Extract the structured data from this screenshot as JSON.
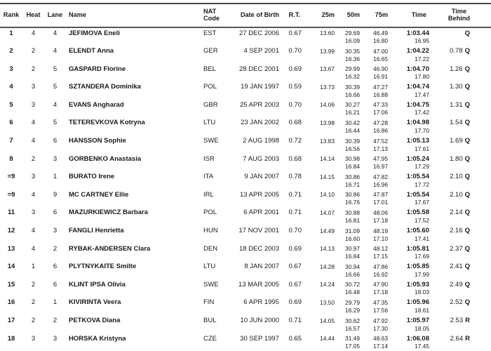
{
  "page": {
    "background": "#ffffff",
    "text_color": "#1a1a1a",
    "rule_color": "#4a4a4a"
  },
  "header": {
    "rank": "Rank",
    "heat": "Heat",
    "lane": "Lane",
    "name": "Name",
    "nat_line1": "NAT",
    "nat_line2": "Code",
    "dob": "Date of Birth",
    "rt": "R.T.",
    "m25": "25m",
    "m50": "50m",
    "m75": "75m",
    "time": "Time",
    "behind_line1": "Time",
    "behind_line2": "Behind"
  },
  "rows": [
    {
      "rank": "1",
      "heat": "4",
      "lane": "4",
      "name": "JEFIMOVA Eneli",
      "nat": "EST",
      "dob": "27 DEC 2006",
      "rt": "0.67",
      "m25": "13.60",
      "m50": "29.69",
      "m75": "46.49",
      "time": "1:03.44",
      "behind": "",
      "qual": "Q",
      "s50": "16.09",
      "s75": "16.80",
      "stime": "16.95"
    },
    {
      "rank": "2",
      "heat": "2",
      "lane": "4",
      "name": "ELENDT Anna",
      "nat": "GER",
      "dob": "4 SEP 2001",
      "rt": "0.70",
      "m25": "13.99",
      "m50": "30.35",
      "m75": "47.00",
      "time": "1:04.22",
      "behind": "0.78",
      "qual": "Q",
      "s50": "16.36",
      "s75": "16.65",
      "stime": "17.22"
    },
    {
      "rank": "3",
      "heat": "2",
      "lane": "5",
      "name": "GASPARD Florine",
      "nat": "BEL",
      "dob": "28 DEC 2001",
      "rt": "0.69",
      "m25": "13.67",
      "m50": "29.99",
      "m75": "46.90",
      "time": "1:04.70",
      "behind": "1.26",
      "qual": "Q",
      "s50": "16.32",
      "s75": "16.91",
      "stime": "17.80"
    },
    {
      "rank": "4",
      "heat": "3",
      "lane": "5",
      "name": "SZTANDERA Dominika",
      "nat": "POL",
      "dob": "19 JAN 1997",
      "rt": "0.59",
      "m25": "13.73",
      "m50": "30.39",
      "m75": "47.27",
      "time": "1:04.74",
      "behind": "1.30",
      "qual": "Q",
      "s50": "16.66",
      "s75": "16.88",
      "stime": "17.47"
    },
    {
      "rank": "5",
      "heat": "3",
      "lane": "4",
      "name": "EVANS Angharad",
      "nat": "GBR",
      "dob": "25 APR 2003",
      "rt": "0.70",
      "m25": "14.06",
      "m50": "30.27",
      "m75": "47.33",
      "time": "1:04.75",
      "behind": "1.31",
      "qual": "Q",
      "s50": "16.21",
      "s75": "17.06",
      "stime": "17.42"
    },
    {
      "rank": "6",
      "heat": "4",
      "lane": "5",
      "name": "TETEREVKOVA Kotryna",
      "nat": "LTU",
      "dob": "23 JAN 2002",
      "rt": "0.68",
      "m25": "13.98",
      "m50": "30.42",
      "m75": "47.28",
      "time": "1:04.98",
      "behind": "1.54",
      "qual": "Q",
      "s50": "16.44",
      "s75": "16.86",
      "stime": "17.70"
    },
    {
      "rank": "7",
      "heat": "4",
      "lane": "6",
      "name": "HANSSON Sophie",
      "nat": "SWE",
      "dob": "2 AUG 1998",
      "rt": "0.72",
      "m25": "13.83",
      "m50": "30.39",
      "m75": "47.52",
      "time": "1:05.13",
      "behind": "1.69",
      "qual": "Q",
      "s50": "16.56",
      "s75": "17.13",
      "stime": "17.61"
    },
    {
      "rank": "8",
      "heat": "2",
      "lane": "3",
      "name": "GORBENKO Anastasia",
      "nat": "ISR",
      "dob": "7 AUG 2003",
      "rt": "0.68",
      "m25": "14.14",
      "m50": "30.98",
      "m75": "47.95",
      "time": "1:05.24",
      "behind": "1.80",
      "qual": "Q",
      "s50": "16.84",
      "s75": "16.97",
      "stime": "17.29"
    },
    {
      "rank": "=9",
      "heat": "3",
      "lane": "1",
      "name": "BURATO Irene",
      "nat": "ITA",
      "dob": "9 JAN 2007",
      "rt": "0.78",
      "m25": "14.15",
      "m50": "30.86",
      "m75": "47.82",
      "time": "1:05.54",
      "behind": "2.10",
      "qual": "Q",
      "s50": "16.71",
      "s75": "16.96",
      "stime": "17.72"
    },
    {
      "rank": "=9",
      "heat": "4",
      "lane": "9",
      "name": "MC CARTNEY Ellie",
      "nat": "IRL",
      "dob": "13 APR 2005",
      "rt": "0.71",
      "m25": "14.10",
      "m50": "30.86",
      "m75": "47.87",
      "time": "1:05.54",
      "behind": "2.10",
      "qual": "Q",
      "s50": "16.76",
      "s75": "17.01",
      "stime": "17.67"
    },
    {
      "rank": "11",
      "heat": "3",
      "lane": "6",
      "name": "MAZURKIEWICZ Barbara",
      "nat": "POL",
      "dob": "6 APR 2001",
      "rt": "0.71",
      "m25": "14.07",
      "m50": "30.88",
      "m75": "48.06",
      "time": "1:05.58",
      "behind": "2.14",
      "qual": "Q",
      "s50": "16.81",
      "s75": "17.18",
      "stime": "17.52"
    },
    {
      "rank": "12",
      "heat": "4",
      "lane": "3",
      "name": "FANGLI Henrietta",
      "nat": "HUN",
      "dob": "17 NOV 2001",
      "rt": "0.70",
      "m25": "14.49",
      "m50": "31.09",
      "m75": "48.19",
      "time": "1:05.60",
      "behind": "2.16",
      "qual": "Q",
      "s50": "16.60",
      "s75": "17.10",
      "stime": "17.41"
    },
    {
      "rank": "13",
      "heat": "4",
      "lane": "2",
      "name": "RYBAK-ANDERSEN Clara",
      "nat": "DEN",
      "dob": "18 DEC 2003",
      "rt": "0.69",
      "m25": "14.13",
      "m50": "30.97",
      "m75": "48.12",
      "time": "1:05.81",
      "behind": "2.37",
      "qual": "Q",
      "s50": "16.84",
      "s75": "17.15",
      "stime": "17.69"
    },
    {
      "rank": "14",
      "heat": "1",
      "lane": "6",
      "name": "PLYTNYKAITE Smilte",
      "nat": "LTU",
      "dob": "8 JAN 2007",
      "rt": "0.67",
      "m25": "14.28",
      "m50": "30.94",
      "m75": "47.86",
      "time": "1:05.85",
      "behind": "2.41",
      "qual": "Q",
      "s50": "16.66",
      "s75": "16.92",
      "stime": "17.99"
    },
    {
      "rank": "15",
      "heat": "2",
      "lane": "6",
      "name": "KLINT IPSA Olivia",
      "nat": "SWE",
      "dob": "13 MAR 2005",
      "rt": "0.67",
      "m25": "14.24",
      "m50": "30.72",
      "m75": "47.90",
      "time": "1:05.93",
      "behind": "2.49",
      "qual": "Q",
      "s50": "16.48",
      "s75": "17.18",
      "stime": "18.03"
    },
    {
      "rank": "16",
      "heat": "2",
      "lane": "1",
      "name": "KIVIRINTA Veera",
      "nat": "FIN",
      "dob": "6 APR 1995",
      "rt": "0.69",
      "m25": "13.50",
      "m50": "29.79",
      "m75": "47.35",
      "time": "1:05.96",
      "behind": "2.52",
      "qual": "Q",
      "s50": "16.29",
      "s75": "17.56",
      "stime": "18.61"
    },
    {
      "rank": "17",
      "heat": "2",
      "lane": "2",
      "name": "PETKOVA Diana",
      "nat": "BUL",
      "dob": "10 JUN 2000",
      "rt": "0.71",
      "m25": "14.05",
      "m50": "30.62",
      "m75": "47.92",
      "time": "1:05.97",
      "behind": "2.53",
      "qual": "R",
      "s50": "16.57",
      "s75": "17.30",
      "stime": "18.05"
    },
    {
      "rank": "18",
      "heat": "3",
      "lane": "3",
      "name": "HORSKA Kristyna",
      "nat": "CZE",
      "dob": "30 SEP 1997",
      "rt": "0.65",
      "m25": "14.44",
      "m50": "31.49",
      "m75": "48.63",
      "time": "1:06.08",
      "behind": "2.64",
      "qual": "R",
      "s50": "17.05",
      "s75": "17.14",
      "stime": "17.45"
    }
  ]
}
